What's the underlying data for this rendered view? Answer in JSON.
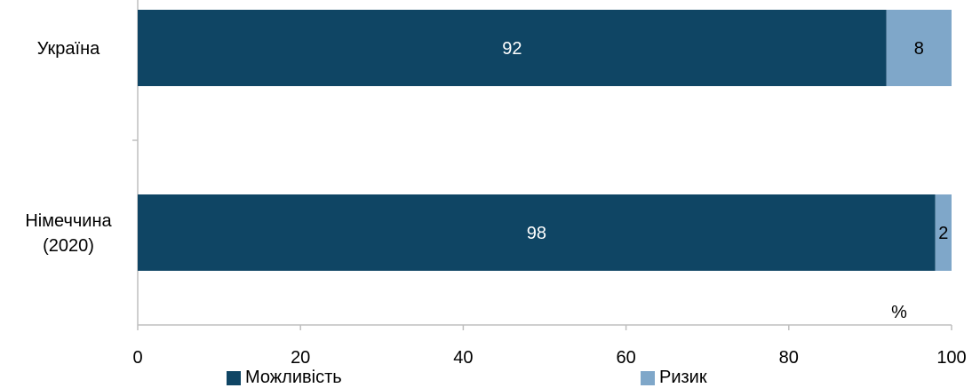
{
  "chart_data": {
    "type": "bar",
    "orientation": "horizontal",
    "stacked": true,
    "categories": [
      "Україна",
      "Німеччина (2020)"
    ],
    "category_lines": [
      [
        "Україна"
      ],
      [
        "Німеччина",
        "(2020)"
      ]
    ],
    "series": [
      {
        "name": "Можливість",
        "values": [
          92,
          98
        ],
        "color": "#0f4564"
      },
      {
        "name": "Ризик",
        "values": [
          8,
          2
        ],
        "color": "#7fa7c9"
      }
    ],
    "xlim": [
      0,
      100
    ],
    "xticks": [
      0,
      20,
      40,
      60,
      80,
      100
    ],
    "unit_label": "%",
    "data_labels": true,
    "grid": false,
    "legend_position": "bottom"
  }
}
